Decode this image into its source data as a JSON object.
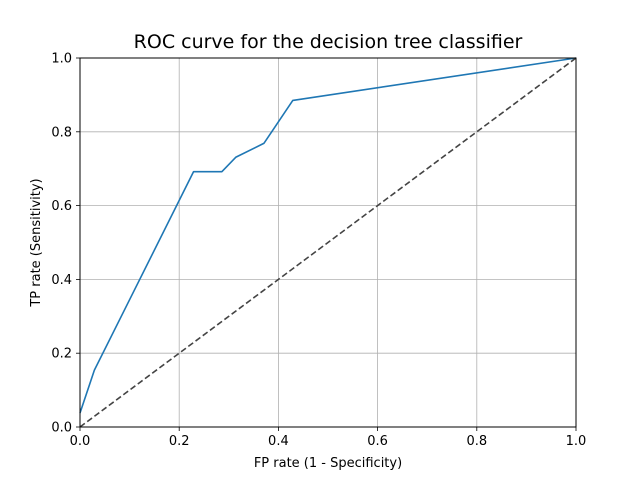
{
  "chart_data": {
    "type": "line",
    "title": "ROC curve for the decision tree classifier",
    "xlabel": "FP rate (1 - Specificity)",
    "ylabel": "TP rate (Sensitivity)",
    "xlim": [
      0.0,
      1.0
    ],
    "ylim": [
      0.0,
      1.0
    ],
    "xticks": [
      "0.0",
      "0.2",
      "0.4",
      "0.6",
      "0.8",
      "1.0"
    ],
    "yticks": [
      "0.0",
      "0.2",
      "0.4",
      "0.6",
      "0.8",
      "1.0"
    ],
    "grid": true,
    "series": [
      {
        "color": "#1f77b4",
        "style": "solid",
        "x": [
          0.0,
          0.029,
          0.229,
          0.286,
          0.314,
          0.371,
          0.429,
          1.0
        ],
        "y": [
          0.038,
          0.154,
          0.692,
          0.692,
          0.731,
          0.769,
          0.885,
          1.0
        ]
      },
      {
        "color": "#444444",
        "style": "dashed",
        "x": [
          0.0,
          1.0
        ],
        "y": [
          0.0,
          1.0
        ]
      }
    ]
  }
}
